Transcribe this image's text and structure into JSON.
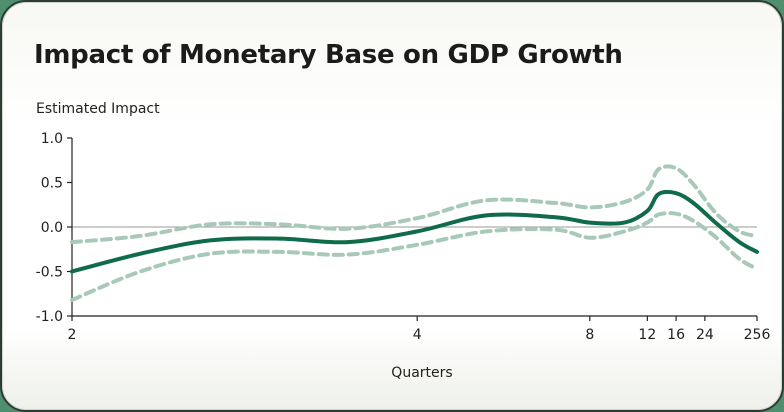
{
  "chart_data": {
    "type": "line",
    "title": "Impact of Monetary Base on GDP Growth",
    "ylabel": "Estimated Impact",
    "xlabel": "Quarters",
    "x_scale": "reciprocal",
    "ylim": [
      -1.0,
      1.0
    ],
    "y_ticks": [
      "1.0",
      "0.5",
      "0.0",
      "-0.5",
      "-1.0"
    ],
    "x_ticks": [
      "2",
      "4",
      "8",
      "12",
      "16",
      "24",
      "256"
    ],
    "x_tick_values": [
      2,
      4,
      8,
      12,
      16,
      24,
      256
    ],
    "zero_line": true,
    "colors": {
      "estimate": "#0f6b4a",
      "band": "#a8c9b8",
      "zero": "#9a9a9a"
    },
    "series": [
      {
        "role": "estimate",
        "style": "solid",
        "x": [
          2,
          2.22,
          2.5,
          2.86,
          3.33,
          4,
          5,
          6.67,
          8,
          10,
          12,
          13.3,
          16,
          20,
          30,
          60,
          256
        ],
        "y": [
          -0.5,
          -0.3,
          -0.15,
          -0.13,
          -0.17,
          -0.05,
          0.13,
          0.11,
          0.05,
          0.05,
          0.18,
          0.37,
          0.38,
          0.27,
          0.04,
          -0.17,
          -0.28
        ]
      },
      {
        "role": "upper-band",
        "style": "dashed",
        "x": [
          2,
          2.22,
          2.5,
          2.86,
          3.33,
          4,
          5,
          6.67,
          8,
          10,
          12,
          13.3,
          16,
          20,
          30,
          60,
          256
        ],
        "y": [
          -0.17,
          -0.1,
          0.03,
          0.03,
          -0.02,
          0.1,
          0.3,
          0.27,
          0.22,
          0.28,
          0.42,
          0.65,
          0.66,
          0.48,
          0.15,
          -0.05,
          -0.1
        ]
      },
      {
        "role": "lower-band",
        "style": "dashed",
        "x": [
          2,
          2.22,
          2.5,
          2.86,
          3.33,
          4,
          5,
          6.67,
          8,
          10,
          12,
          13.3,
          16,
          20,
          30,
          60,
          256
        ],
        "y": [
          -0.82,
          -0.5,
          -0.3,
          -0.28,
          -0.31,
          -0.2,
          -0.05,
          -0.03,
          -0.12,
          -0.05,
          0.05,
          0.14,
          0.15,
          0.07,
          -0.12,
          -0.36,
          -0.47
        ]
      }
    ]
  }
}
